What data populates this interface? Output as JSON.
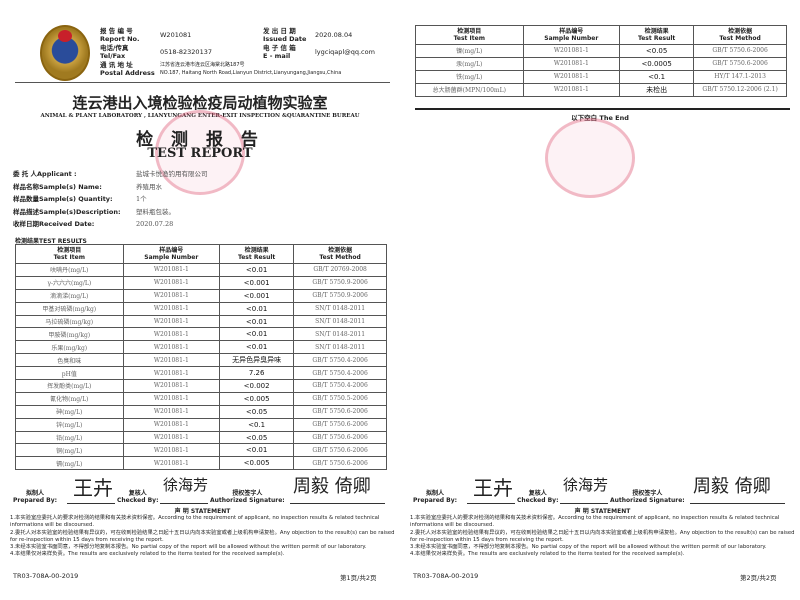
{
  "header": {
    "report_no_label_cn": "报 告 编 号",
    "report_no_label_en": "Report No.",
    "report_no": "W201081",
    "tel_label_cn": "电话/传真",
    "tel_label_en": "Tel/Fax",
    "tel": "0518-82320137",
    "addr_label_cn": "通 讯 地 址",
    "addr_label_en": "Postal Address",
    "addr_cn": "江苏省连云港市连云区海棠北路187号",
    "addr_en": "NO.187, Haitang North Road,Lianyun District,Lianyungang,Jiangsu,China",
    "date_label_cn": "发 出 日 期",
    "date_label_en": "Issued Date",
    "date": "2020.08.04",
    "email_label_cn": "电 子 信 箱",
    "email_label_en": "E - mail",
    "email": "lygciqapl@qq.com"
  },
  "lab_name_cn": "连云港出入境检验检疫局动植物实验室",
  "lab_name_en": "ANIMAL & PLANT LABORATORY , LIANYUNGANG ENTER-EXIT INSPECTION &QUARANTINE BUREAU",
  "title_cn": "检 测 报 告",
  "title_en": "TEST REPORT",
  "info": [
    {
      "k": "委 托 人Applicant :",
      "v": "盐城卡悦渔钓用有限公司"
    },
    {
      "k": "样品名称Sample(s)    Name:",
      "v": "养殖用水"
    },
    {
      "k": "样品数量Sample(s)  Quantity:",
      "v": "1个"
    },
    {
      "k": "样品描述Sample(s)Description:",
      "v": "塑料瓶包装。"
    },
    {
      "k": "收样日期Received      Date:",
      "v": "2020.07.28"
    }
  ],
  "results_label": "检测结果TEST RESULTS",
  "columns": [
    {
      "cn": "检测项目",
      "en": "Test Item"
    },
    {
      "cn": "样品编号",
      "en": "Sample Number"
    },
    {
      "cn": "检测结果",
      "en": "Test Result"
    },
    {
      "cn": "检测依据",
      "en": "Test Method"
    }
  ],
  "rows_page1": [
    [
      "呋喃丹(mg/L)",
      "W201081-1",
      "<0.01",
      "GB/T 20769-2008"
    ],
    [
      "γ-六六六(mg/L)",
      "W201081-1",
      "<0.001",
      "GB/T 5750.9-2006"
    ],
    [
      "滴滴涕(mg/L)",
      "W201081-1",
      "<0.001",
      "GB/T 5750.9-2006"
    ],
    [
      "甲基对硫磷(mg/kg)",
      "W201081-1",
      "<0.01",
      "SN/T 0148-2011"
    ],
    [
      "马拉硫磷(mg/kg)",
      "W201081-1",
      "<0.01",
      "SN/T 0148-2011"
    ],
    [
      "甲胺磷(mg/kg)",
      "W201081-1",
      "<0.01",
      "SN/T 0148-2011"
    ],
    [
      "乐果(mg/kg)",
      "W201081-1",
      "<0.01",
      "SN/T 0148-2011"
    ],
    [
      "色臭和味",
      "W201081-1",
      "无异色异臭异味",
      "GB/T 5750.4-2006"
    ],
    [
      "pH值",
      "W201081-1",
      "7.26",
      "GB/T 5750.4-2006"
    ],
    [
      "挥发酚类(mg/L)",
      "W201081-1",
      "<0.002",
      "GB/T 5750.4-2006"
    ],
    [
      "氰化物(mg/L)",
      "W201081-1",
      "<0.005",
      "GB/T 5750.5-2006"
    ],
    [
      "砷(mg/L)",
      "W201081-1",
      "<0.05",
      "GB/T 5750.6-2006"
    ],
    [
      "锌(mg/L)",
      "W201081-1",
      "<0.1",
      "GB/T 5750.6-2006"
    ],
    [
      "铅(mg/L)",
      "W201081-1",
      "<0.05",
      "GB/T 5750.6-2006"
    ],
    [
      "铜(mg/L)",
      "W201081-1",
      "<0.01",
      "GB/T 5750.6-2006"
    ],
    [
      "镉(mg/L)",
      "W201081-1",
      "<0.005",
      "GB/T 5750.6-2006"
    ]
  ],
  "rows_page2": [
    [
      "镍(mg/L)",
      "W201081-1",
      "<0.05",
      "GB/T 5750.6-2006"
    ],
    [
      "汞(mg/L)",
      "W201081-1",
      "<0.0005",
      "GB/T 5750.6-2006"
    ],
    [
      "铁(mg/L)",
      "W201081-1",
      "<0.1",
      "HY/T 147.1-2013"
    ],
    [
      "总大肠菌群(MPN/100mL)",
      "W201081-1",
      "未检出",
      "GB/T 5750.12-2006 (2.1)"
    ]
  ],
  "end_label": "以下空白 The End",
  "signatures": {
    "prepared_cn": "拟制人",
    "prepared_en": "Prepared By:",
    "prepared_name": "王卉",
    "checked_cn": "复核人",
    "checked_en": "Checked By:",
    "checked_name": "徐海芳",
    "authorized_cn": "授权签字人",
    "authorized_en": "Authorized Signature:",
    "authorized_name": "周毅 倚卿"
  },
  "statement": {
    "title": "声    明 STATEMENT",
    "items": [
      "1.本实验室应委托人的要求对检测的结果和有关技术资料保密。According to the requirement of applicant, no inspection results & related technical informations will be discoursed.",
      "2.委托人对本实验室的检验结果有异议的，可在收到检验结果之日起十五日以内向本实验室或者上级机构申请复检。Any objection to the result(s) can be raised for re-inspection within 15 days from receiving the report.",
      "3.未经本实验室书面同意，不得部分地复制本报告。No partial copy of the report will be allowed without the written permit of our laboratory.",
      "4.本结果仅对来样负责。The results are exclusively related to the items tested for the received sample(s)."
    ]
  },
  "footer": {
    "form_no": "TR03-708A-00-2019",
    "page1": "第1页/共2页",
    "page2": "第2页/共2页"
  }
}
